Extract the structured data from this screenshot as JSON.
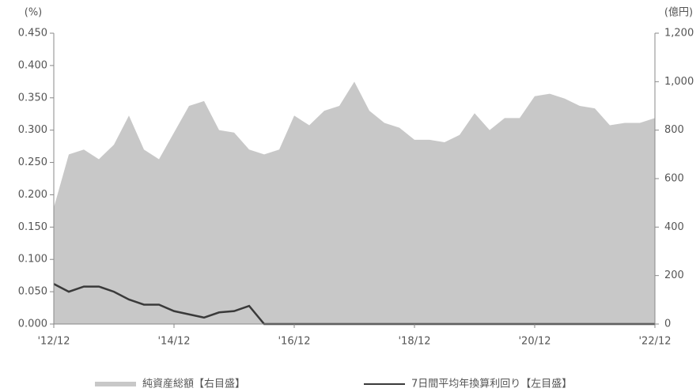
{
  "chart_data": {
    "type": "area-line",
    "y_label": "(%)",
    "y2_label": "(億円)",
    "categories": [
      "'12/12",
      null,
      null,
      null,
      null,
      null,
      null,
      null,
      "'14/12",
      null,
      null,
      null,
      null,
      null,
      null,
      null,
      "'16/12",
      null,
      null,
      null,
      null,
      null,
      null,
      null,
      "'18/12",
      null,
      null,
      null,
      null,
      null,
      null,
      null,
      "'20/12",
      null,
      null,
      null,
      null,
      null,
      null,
      null,
      "'22/12"
    ],
    "series": [
      {
        "name": "純資産総額【右目盛】",
        "color": "#c8c8c8",
        "axis": "y2",
        "kind": "area",
        "values": [
          480,
          700,
          720,
          680,
          740,
          860,
          720,
          680,
          790,
          900,
          920,
          800,
          790,
          720,
          700,
          720,
          860,
          820,
          880,
          900,
          1000,
          880,
          830,
          810,
          760,
          760,
          750,
          780,
          870,
          800,
          850,
          850,
          940,
          950,
          930,
          900,
          890,
          820,
          830,
          830,
          850
        ]
      },
      {
        "name": "7日間平均年換算利回り【左目盛】",
        "color": "#3a3a3a",
        "axis": "y",
        "kind": "line",
        "values": [
          0.062,
          0.05,
          0.058,
          0.058,
          0.05,
          0.038,
          0.03,
          0.03,
          0.02,
          0.015,
          0.01,
          0.018,
          0.02,
          0.028,
          0.0,
          0.0,
          0.0,
          0.0,
          0.0,
          0.0,
          0.0,
          0.0,
          0.0,
          0.0,
          0.0,
          0.0,
          0.0,
          0.0,
          0.0,
          0.0,
          0.0,
          0.0,
          0.0,
          0.0,
          0.0,
          0.0,
          0.0,
          0.0,
          0.0,
          0.0,
          0.0
        ]
      }
    ],
    "ylim": [
      0,
      0.45
    ],
    "yticks": [
      {
        "value": 0,
        "label": "0.000"
      },
      {
        "value": 0.05,
        "label": "0.050"
      },
      {
        "value": 0.1,
        "label": "0.100"
      },
      {
        "value": 0.15,
        "label": "0.150"
      },
      {
        "value": 0.2,
        "label": "0.200"
      },
      {
        "value": 0.25,
        "label": "0.250"
      },
      {
        "value": 0.3,
        "label": "0.300"
      },
      {
        "value": 0.35,
        "label": "0.350"
      },
      {
        "value": 0.4,
        "label": "0.400"
      },
      {
        "value": 0.45,
        "label": "0.450"
      }
    ],
    "y2lim": [
      0,
      1200
    ],
    "y2ticks": [
      0,
      200,
      400,
      600,
      800,
      {
        "value": 1000,
        "label": "1,000"
      },
      {
        "value": 1200,
        "label": "1,200"
      }
    ]
  }
}
